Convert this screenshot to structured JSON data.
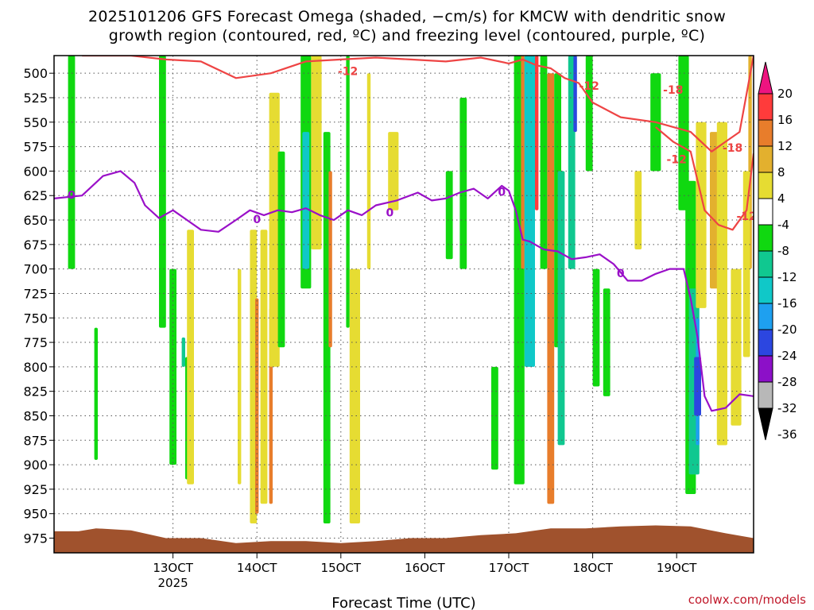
{
  "title": {
    "line1": "2025101206 GFS Forecast Omega (shaded, −cm/s) for KMCW with dendritic snow",
    "line2": "growth region (contoured, red, ºC) and freezing level (contoured, purple, ºC)"
  },
  "credit": "coolwx.com/models",
  "chart_data": {
    "type": "heatmap",
    "xlabel": "Forecast Time (UTC)",
    "x_ticks": [
      {
        "label": "13OCT",
        "sublabel": "2025",
        "hour": 162
      },
      {
        "label": "14OCT",
        "sublabel": "",
        "hour": 186
      },
      {
        "label": "15OCT",
        "sublabel": "",
        "hour": 210
      },
      {
        "label": "16OCT",
        "sublabel": "",
        "hour": 234
      },
      {
        "label": "17OCT",
        "sublabel": "",
        "hour": 258
      },
      {
        "label": "18OCT",
        "sublabel": "",
        "hour": 282
      },
      {
        "label": "19OCT",
        "sublabel": "",
        "hour": 306
      }
    ],
    "y_ticks": [
      500,
      525,
      550,
      575,
      600,
      625,
      650,
      675,
      700,
      725,
      750,
      775,
      800,
      825,
      850,
      875,
      900,
      925,
      950,
      975
    ],
    "xlim_hour": [
      128,
      328
    ],
    "ylim_hpa": [
      482,
      990
    ],
    "grid": true,
    "colorbar": {
      "labels": [
        "20",
        "16",
        "12",
        "8",
        "4",
        "-4",
        "-8",
        "-12",
        "-16",
        "-20",
        "-24",
        "-28",
        "-32",
        "-36"
      ],
      "bounds": [
        20,
        16,
        12,
        8,
        4,
        -4,
        -8,
        -12,
        -16,
        -20,
        -24,
        -28,
        -32,
        -36
      ],
      "colors": [
        "#ff3b3b",
        "#e87d2b",
        "#e3b02e",
        "#e6dc32",
        "#ffffff",
        "#10d810",
        "#10c890",
        "#10c8c8",
        "#1ea0f0",
        "#2c46e0",
        "#8c10c8",
        "#b8b8b8"
      ],
      "top_cap": "#ee1480",
      "bottom_cap": "#000000"
    },
    "shading": [
      {
        "x": 133,
        "p1": 482,
        "p2": 700,
        "color": "#10d810"
      },
      {
        "x": 140,
        "p1": 760,
        "p2": 895,
        "color": "#10d810"
      },
      {
        "x": 159,
        "p1": 482,
        "p2": 760,
        "color": "#10d810"
      },
      {
        "x": 162,
        "p1": 700,
        "p2": 900,
        "color": "#10d810"
      },
      {
        "x": 166,
        "p1": 790,
        "p2": 915,
        "color": "#10d810"
      },
      {
        "x": 165,
        "p1": 770,
        "p2": 800,
        "color": "#10c890"
      },
      {
        "x": 167,
        "p1": 660,
        "p2": 920,
        "color": "#e6dc32"
      },
      {
        "x": 181,
        "p1": 700,
        "p2": 920,
        "color": "#e6dc32"
      },
      {
        "x": 185,
        "p1": 660,
        "p2": 960,
        "color": "#e6dc32"
      },
      {
        "x": 186,
        "p1": 730,
        "p2": 950,
        "color": "#e87d2b"
      },
      {
        "x": 188,
        "p1": 660,
        "p2": 940,
        "color": "#e6dc32"
      },
      {
        "x": 190,
        "p1": 740,
        "p2": 940,
        "color": "#e87d2b"
      },
      {
        "x": 191,
        "p1": 520,
        "p2": 800,
        "color": "#e6dc32"
      },
      {
        "x": 193,
        "p1": 580,
        "p2": 780,
        "color": "#10d810"
      },
      {
        "x": 200,
        "p1": 482,
        "p2": 720,
        "color": "#10d810"
      },
      {
        "x": 200,
        "p1": 560,
        "p2": 700,
        "color": "#10c8c8"
      },
      {
        "x": 203,
        "p1": 482,
        "p2": 680,
        "color": "#e6dc32"
      },
      {
        "x": 206,
        "p1": 560,
        "p2": 960,
        "color": "#10d810"
      },
      {
        "x": 207,
        "p1": 600,
        "p2": 780,
        "color": "#e87d2b"
      },
      {
        "x": 212,
        "p1": 482,
        "p2": 760,
        "color": "#10d810"
      },
      {
        "x": 214,
        "p1": 700,
        "p2": 960,
        "color": "#e6dc32"
      },
      {
        "x": 218,
        "p1": 500,
        "p2": 700,
        "color": "#e6dc32"
      },
      {
        "x": 225,
        "p1": 560,
        "p2": 640,
        "color": "#e6dc32"
      },
      {
        "x": 241,
        "p1": 600,
        "p2": 690,
        "color": "#10d810"
      },
      {
        "x": 245,
        "p1": 525,
        "p2": 700,
        "color": "#10d810"
      },
      {
        "x": 254,
        "p1": 800,
        "p2": 905,
        "color": "#10d810"
      },
      {
        "x": 261,
        "p1": 482,
        "p2": 920,
        "color": "#10d810"
      },
      {
        "x": 262,
        "p1": 482,
        "p2": 700,
        "color": "#e87d2b"
      },
      {
        "x": 264,
        "p1": 482,
        "p2": 800,
        "color": "#10c8c8"
      },
      {
        "x": 266,
        "p1": 482,
        "p2": 640,
        "color": "#ff3b3b"
      },
      {
        "x": 268,
        "p1": 482,
        "p2": 700,
        "color": "#10d810"
      },
      {
        "x": 270,
        "p1": 500,
        "p2": 940,
        "color": "#e87d2b"
      },
      {
        "x": 272,
        "p1": 500,
        "p2": 780,
        "color": "#10d810"
      },
      {
        "x": 273,
        "p1": 600,
        "p2": 880,
        "color": "#10c890"
      },
      {
        "x": 276,
        "p1": 482,
        "p2": 700,
        "color": "#10c890"
      },
      {
        "x": 277,
        "p1": 482,
        "p2": 560,
        "color": "#2c46e0"
      },
      {
        "x": 281,
        "p1": 482,
        "p2": 600,
        "color": "#10d810"
      },
      {
        "x": 283,
        "p1": 700,
        "p2": 820,
        "color": "#10d810"
      },
      {
        "x": 286,
        "p1": 720,
        "p2": 830,
        "color": "#10d810"
      },
      {
        "x": 295,
        "p1": 600,
        "p2": 680,
        "color": "#e6dc32"
      },
      {
        "x": 300,
        "p1": 500,
        "p2": 600,
        "color": "#10d810"
      },
      {
        "x": 308,
        "p1": 482,
        "p2": 640,
        "color": "#10d810"
      },
      {
        "x": 310,
        "p1": 610,
        "p2": 930,
        "color": "#10d810"
      },
      {
        "x": 311,
        "p1": 720,
        "p2": 910,
        "color": "#10c890"
      },
      {
        "x": 312,
        "p1": 750,
        "p2": 880,
        "color": "#1ea0f0"
      },
      {
        "x": 312,
        "p1": 790,
        "p2": 850,
        "color": "#2c46e0"
      },
      {
        "x": 313,
        "p1": 550,
        "p2": 740,
        "color": "#e6dc32"
      },
      {
        "x": 317,
        "p1": 560,
        "p2": 720,
        "color": "#e3b02e"
      },
      {
        "x": 319,
        "p1": 550,
        "p2": 880,
        "color": "#e6dc32"
      },
      {
        "x": 323,
        "p1": 700,
        "p2": 860,
        "color": "#e6dc32"
      },
      {
        "x": 327,
        "p1": 482,
        "p2": 700,
        "color": "#e3b02e"
      },
      {
        "x": 326,
        "p1": 600,
        "p2": 790,
        "color": "#e6dc32"
      }
    ],
    "shading_widths": [
      2,
      1,
      2,
      2,
      1,
      1,
      2,
      1,
      2,
      1,
      2,
      1,
      3,
      2,
      3,
      2,
      3,
      2,
      1,
      1,
      3,
      1,
      3,
      2,
      2,
      2,
      3,
      1,
      3,
      1,
      2,
      2,
      2,
      2,
      2,
      1,
      2,
      2,
      2,
      2,
      3,
      3,
      3,
      3,
      1,
      2,
      3,
      3,
      3,
      3,
      1,
      2
    ],
    "freezing_level": {
      "label": "0",
      "color": "#9a10c8",
      "x": [
        128,
        136,
        142,
        147,
        151,
        154,
        158,
        162,
        166,
        170,
        175,
        180,
        184,
        188,
        192,
        196,
        200,
        204,
        208,
        212,
        216,
        220,
        226,
        232,
        236,
        240,
        244,
        248,
        252,
        256,
        258,
        260,
        262,
        264,
        268,
        272,
        276,
        280,
        284,
        288,
        292,
        296,
        300,
        304,
        308,
        310,
        312,
        314,
        316,
        320,
        324,
        328
      ],
      "p": [
        628,
        625,
        605,
        600,
        612,
        635,
        648,
        640,
        650,
        660,
        662,
        650,
        640,
        645,
        640,
        642,
        638,
        645,
        650,
        640,
        645,
        635,
        630,
        622,
        630,
        628,
        622,
        618,
        628,
        615,
        620,
        640,
        670,
        672,
        680,
        682,
        690,
        688,
        685,
        695,
        712,
        712,
        705,
        700,
        700,
        730,
        770,
        830,
        845,
        842,
        828,
        830
      ]
    },
    "dgz_red": {
      "label_top": "-12",
      "label_bottom": "-18",
      "color": "#ee4444",
      "upper_x": [
        136,
        150,
        160,
        170,
        180,
        190,
        200,
        210,
        220,
        230,
        240,
        250,
        258,
        262,
        266,
        270,
        274,
        278,
        282,
        290,
        300,
        310,
        316,
        320,
        324,
        328
      ],
      "upper_p": [
        482,
        482,
        486,
        488,
        505,
        500,
        488,
        486,
        484,
        486,
        488,
        484,
        490,
        486,
        492,
        495,
        505,
        510,
        530,
        545,
        550,
        560,
        580,
        570,
        560,
        482
      ],
      "lower_x": [
        300,
        305,
        310,
        314,
        318,
        322,
        326,
        328
      ],
      "lower_p": [
        555,
        570,
        580,
        640,
        655,
        660,
        640,
        582
      ]
    },
    "terrain": {
      "color": "#a0522d",
      "x": [
        128,
        135,
        140,
        150,
        160,
        170,
        180,
        190,
        200,
        210,
        220,
        230,
        240,
        250,
        260,
        270,
        280,
        290,
        300,
        310,
        320,
        328
      ],
      "p": [
        968,
        968,
        965,
        967,
        975,
        975,
        980,
        978,
        978,
        980,
        978,
        975,
        975,
        972,
        970,
        965,
        965,
        963,
        962,
        963,
        970,
        975
      ]
    }
  }
}
